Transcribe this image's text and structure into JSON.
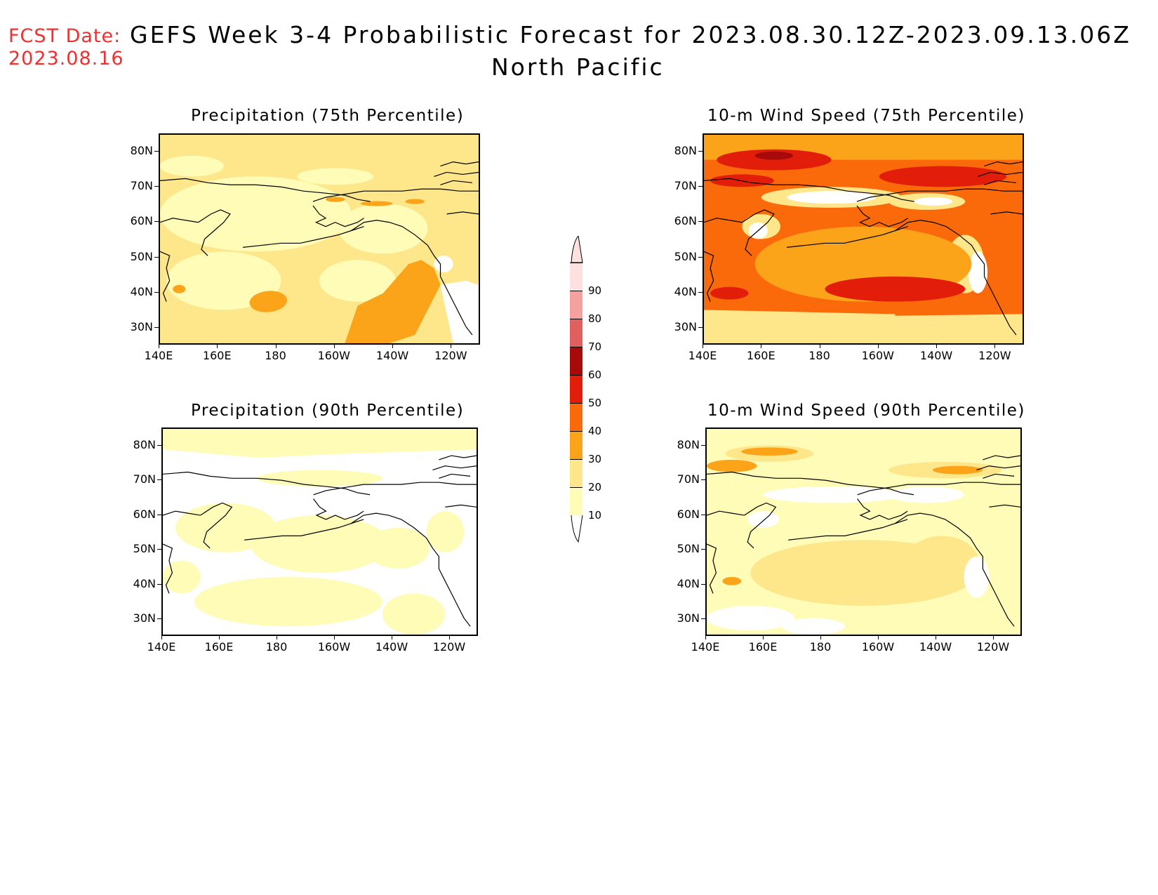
{
  "forecast_date": {
    "label": "FCST Date:",
    "value": "2023.08.16"
  },
  "title": {
    "line1": "GEFS Week 3-4 Probabilistic Forecast for 2023.08.30.12Z-2023.09.13.06Z",
    "line2": "North Pacific"
  },
  "axes": {
    "lat_labels": [
      "80N",
      "70N",
      "60N",
      "50N",
      "40N",
      "30N"
    ],
    "lon_labels": [
      "140E",
      "160E",
      "180",
      "160W",
      "140W",
      "120W"
    ]
  },
  "panels": [
    {
      "id": "precip75",
      "title": "Precipitation (75th Percentile)"
    },
    {
      "id": "wind75",
      "title": "10-m Wind Speed (75th Percentile)"
    },
    {
      "id": "precip90",
      "title": "Precipitation (90th Percentile)"
    },
    {
      "id": "wind90",
      "title": "10-m Wind Speed (90th Percentile)"
    }
  ],
  "colorbar": {
    "labels": [
      "90",
      "80",
      "70",
      "60",
      "50",
      "40",
      "30",
      "20",
      "10"
    ],
    "colors": {
      "10": "#fffcb8",
      "20": "#fde78a",
      "30": "#fba41a",
      "40": "#fb6a0a",
      "50": "#e21e0a",
      "60": "#a80a0a",
      "70": "#e06060",
      "80": "#f7a0a0",
      "90": "#fde0e0"
    }
  }
}
